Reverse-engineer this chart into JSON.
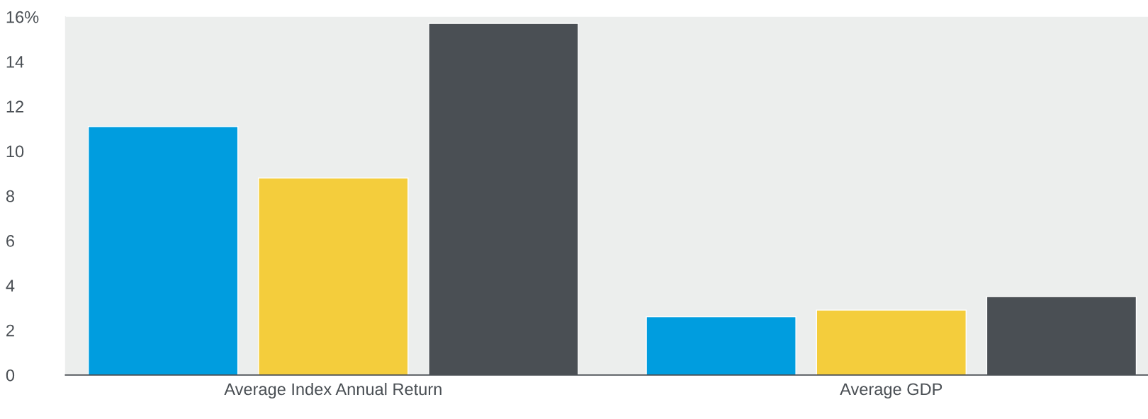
{
  "chart_data": {
    "type": "bar",
    "categories": [
      "Average Index Annual Return",
      "Average GDP"
    ],
    "series": [
      {
        "color": "#009ddf",
        "values": [
          11.1,
          2.6
        ]
      },
      {
        "color": "#f4cd3c",
        "values": [
          8.8,
          2.9
        ]
      },
      {
        "color": "#4a4f54",
        "values": [
          15.7,
          3.5
        ]
      }
    ],
    "ylim": [
      0,
      16
    ],
    "yticks": [
      0,
      2,
      4,
      6,
      8,
      10,
      12,
      14,
      {
        "value": 16,
        "label": "16%"
      }
    ],
    "grid": false,
    "legend": false
  }
}
